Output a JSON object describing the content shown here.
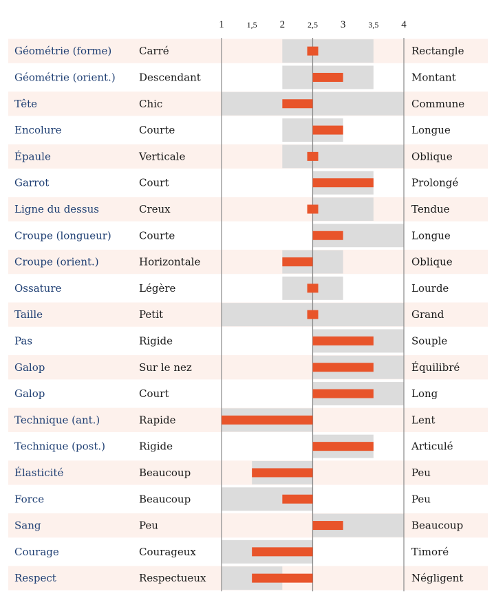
{
  "chart_data": {
    "type": "bar",
    "title": "",
    "xlabel": "",
    "ylabel": "",
    "xlim": [
      1,
      4
    ],
    "center": 2.5,
    "ticks": [
      {
        "value": 1,
        "label": "1"
      },
      {
        "value": 1.5,
        "label": "1,5"
      },
      {
        "value": 2,
        "label": "2"
      },
      {
        "value": 2.5,
        "label": "2,5"
      },
      {
        "value": 3,
        "label": "3"
      },
      {
        "value": 3.5,
        "label": "3,5"
      },
      {
        "value": 4,
        "label": "4"
      }
    ],
    "colors": {
      "bar": "#e8542a",
      "range": "#dcdcdc",
      "row_alt": "#fdf1ec",
      "trait_text": "#1f3f73",
      "axis": "#888888"
    },
    "rows": [
      {
        "trait": "Géométrie (forme)",
        "low": "Carré",
        "high": "Rectangle",
        "value": 2.6,
        "range": [
          2,
          3.5
        ]
      },
      {
        "trait": "Géométrie (orient.)",
        "low": "Descendant",
        "high": "Montant",
        "value": 3,
        "range": [
          2,
          3.5
        ]
      },
      {
        "trait": "Tête",
        "low": "Chic",
        "high": "Commune",
        "value": 2,
        "range": [
          1,
          4
        ]
      },
      {
        "trait": "Encolure",
        "low": "Courte",
        "high": "Longue",
        "value": 3,
        "range": [
          2,
          3
        ]
      },
      {
        "trait": "Épaule",
        "low": "Verticale",
        "high": "Oblique",
        "value": 2.6,
        "range": [
          2,
          4
        ]
      },
      {
        "trait": "Garrot",
        "low": "Court",
        "high": "Prolongé",
        "value": 3.5,
        "range": [
          2.5,
          3.5
        ]
      },
      {
        "trait": "Ligne du dessus",
        "low": "Creux",
        "high": "Tendue",
        "value": 2.6,
        "range": [
          2.5,
          3.5
        ]
      },
      {
        "trait": "Croupe (longueur)",
        "low": "Courte",
        "high": "Longue",
        "value": 3,
        "range": [
          2.5,
          4
        ]
      },
      {
        "trait": "Croupe (orient.)",
        "low": "Horizontale",
        "high": "Oblique",
        "value": 2,
        "range": [
          2,
          3
        ]
      },
      {
        "trait": "Ossature",
        "low": "Légère",
        "high": "Lourde",
        "value": 2.6,
        "range": [
          2,
          3
        ]
      },
      {
        "trait": "Taille",
        "low": "Petit",
        "high": "Grand",
        "value": 2.6,
        "range": [
          1,
          4
        ]
      },
      {
        "trait": "Pas",
        "low": "Rigide",
        "high": "Souple",
        "value": 3.5,
        "range": [
          2.5,
          4
        ]
      },
      {
        "trait": "Galop",
        "low": "Sur le nez",
        "high": "Équilibré",
        "value": 3.5,
        "range": [
          2.5,
          4
        ]
      },
      {
        "trait": "Galop",
        "low": "Court",
        "high": "Long",
        "value": 3.5,
        "range": [
          2.5,
          4
        ]
      },
      {
        "trait": "Technique (ant.)",
        "low": "Rapide",
        "high": "Lent",
        "value": 1,
        "range": [
          1,
          2.5
        ]
      },
      {
        "trait": "Technique (post.)",
        "low": "Rigide",
        "high": "Articulé",
        "value": 3.5,
        "range": [
          2.5,
          3.5
        ]
      },
      {
        "trait": "Élasticité",
        "low": "Beaucoup",
        "high": "Peu",
        "value": 1.5,
        "range": [
          1.5,
          2.5
        ]
      },
      {
        "trait": "Force",
        "low": "Beaucoup",
        "high": "Peu",
        "value": 2,
        "range": [
          1,
          2.5
        ]
      },
      {
        "trait": "Sang",
        "low": "Peu",
        "high": "Beaucoup",
        "value": 3,
        "range": [
          2.5,
          4
        ]
      },
      {
        "trait": "Courage",
        "low": "Courageux",
        "high": "Timoré",
        "value": 1.5,
        "range": [
          1,
          2.5
        ]
      },
      {
        "trait": "Respect",
        "low": "Respectueux",
        "high": "Négligent",
        "value": 1.5,
        "range": [
          1,
          2
        ]
      }
    ]
  }
}
